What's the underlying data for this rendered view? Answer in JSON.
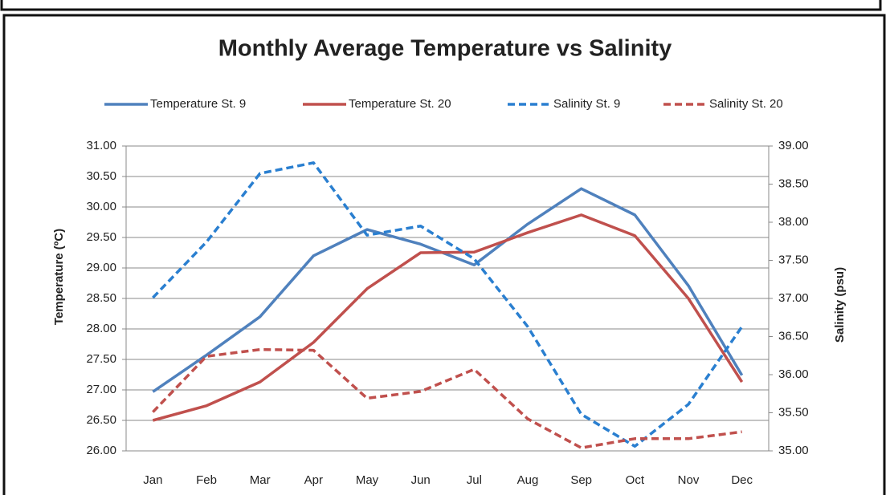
{
  "chart_data": {
    "type": "line",
    "title": "Monthly Average Temperature vs Salinity",
    "y_label": "Temperature (ºC)",
    "y2_label": "Salinity (psu)",
    "categories": [
      "Jan",
      "Feb",
      "Mar",
      "Apr",
      "May",
      "Jun",
      "Jul",
      "Aug",
      "Sep",
      "Oct",
      "Nov",
      "Dec"
    ],
    "series": [
      {
        "name": "Temperature St. 9",
        "color": "#4f81bd",
        "style": "solid",
        "axis": "y",
        "values": [
          26.97,
          27.57,
          28.2,
          29.2,
          29.63,
          29.39,
          29.05,
          29.72,
          30.3,
          29.87,
          28.71,
          27.24
        ]
      },
      {
        "name": "Temperature St. 20",
        "color": "#c0504d",
        "style": "solid",
        "axis": "y",
        "values": [
          26.5,
          26.74,
          27.13,
          27.78,
          28.66,
          29.25,
          29.26,
          29.58,
          29.87,
          29.53,
          28.5,
          27.13
        ]
      },
      {
        "name": "Salinity St. 9",
        "color": "#2a7fd0",
        "style": "dashed",
        "axis": "y2",
        "values": [
          37.01,
          37.74,
          38.64,
          38.78,
          37.83,
          37.95,
          37.52,
          36.63,
          35.48,
          35.06,
          35.61,
          36.63
        ]
      },
      {
        "name": "Salinity St. 20",
        "color": "#c0504d",
        "style": "dashed",
        "axis": "y2",
        "values": [
          35.51,
          36.24,
          36.33,
          36.32,
          35.69,
          35.78,
          36.07,
          35.42,
          35.04,
          35.16,
          35.16,
          35.25
        ]
      }
    ],
    "ylim": [
      26,
      31
    ],
    "yticks": [
      {
        "value": 26,
        "label": "26.00"
      },
      {
        "value": 26.5,
        "label": "26.50"
      },
      {
        "value": 27,
        "label": "27.00"
      },
      {
        "value": 27.5,
        "label": "27.50"
      },
      {
        "value": 28,
        "label": "28.00"
      },
      {
        "value": 28.5,
        "label": "28.50"
      },
      {
        "value": 29,
        "label": "29.00"
      },
      {
        "value": 29.5,
        "label": "29.50"
      },
      {
        "value": 30,
        "label": "30.00"
      },
      {
        "value": 30.5,
        "label": "30.50"
      },
      {
        "value": 31,
        "label": "31.00"
      }
    ],
    "y2lim": [
      35,
      39
    ],
    "y2ticks": [
      {
        "value": 35,
        "label": "35.00"
      },
      {
        "value": 35.5,
        "label": "35.50"
      },
      {
        "value": 36,
        "label": "36.00"
      },
      {
        "value": 36.5,
        "label": "36.50"
      },
      {
        "value": 37,
        "label": "37.00"
      },
      {
        "value": 37.5,
        "label": "37.50"
      },
      {
        "value": 38,
        "label": "38.00"
      },
      {
        "value": 38.5,
        "label": "38.50"
      },
      {
        "value": 39,
        "label": "39.00"
      }
    ],
    "grid": true,
    "legend": "top"
  }
}
